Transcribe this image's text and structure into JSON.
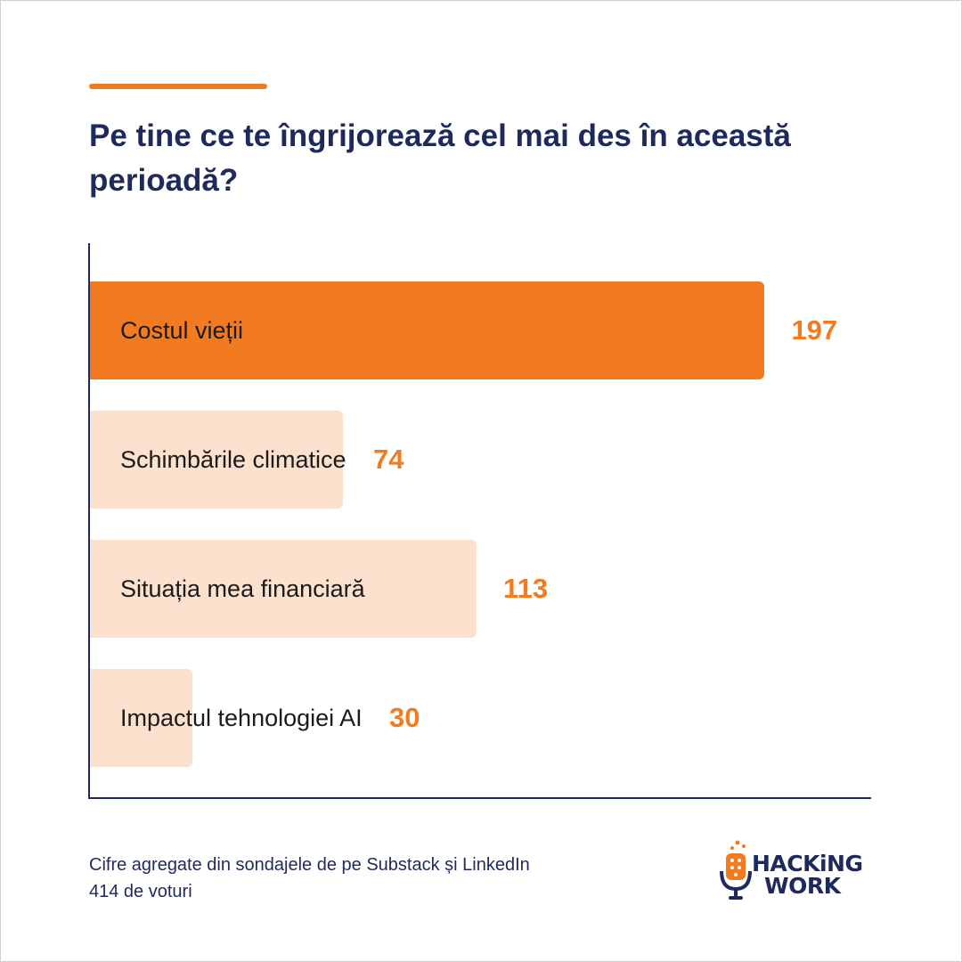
{
  "title": "Pe tine ce te îngrijorează cel mai des în această perioadă?",
  "footnote": {
    "line1": "Cifre agregate din sondajele de pe Substack și LinkedIn",
    "line2": "414 de voturi"
  },
  "logo": {
    "line1": "HACKiNG",
    "line2": "WORK"
  },
  "colors": {
    "accent": "#f27b22",
    "accent_light": "#fbe1ce",
    "navy": "#1f2a5c"
  },
  "chart_data": {
    "type": "bar",
    "orientation": "horizontal",
    "categories": [
      "Costul vieții",
      "Schimbările climatice",
      "Situația mea financiară",
      "Impactul tehnologiei AI"
    ],
    "values": [
      197,
      74,
      113,
      30
    ],
    "highlight_index": 0,
    "xlim": [
      0,
      228
    ]
  }
}
